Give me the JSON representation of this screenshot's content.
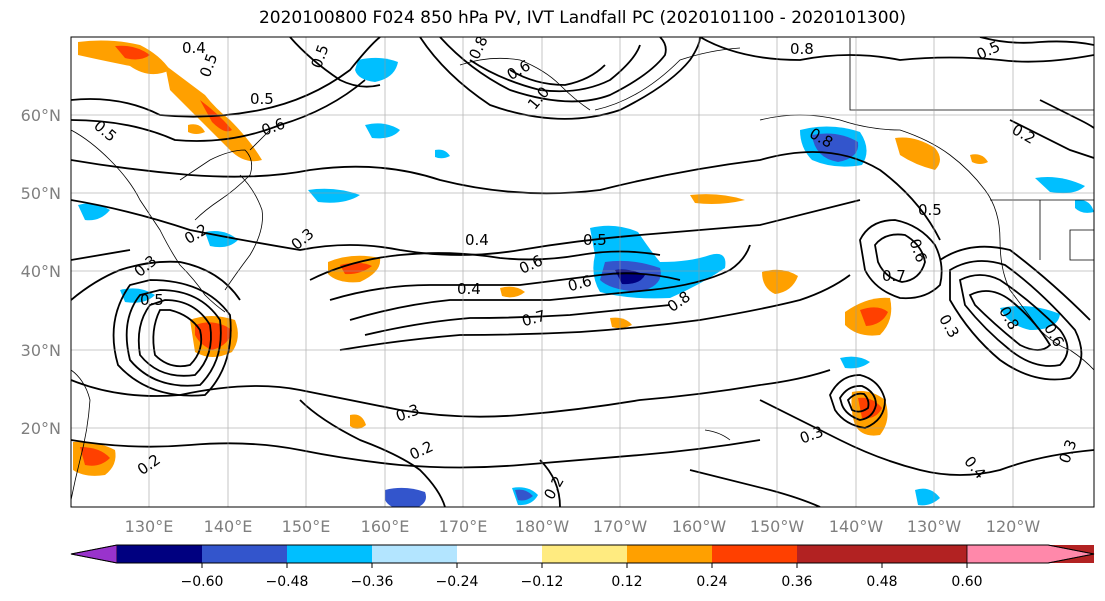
{
  "title": "2020100800 F024 850 hPa PV, IVT Landfall PC (2020101100 - 2020101300)",
  "lat_labels": [
    "60°N",
    "50°N",
    "40°N",
    "30°N",
    "20°N"
  ],
  "lon_labels": [
    "130°E",
    "140°E",
    "150°E",
    "160°E",
    "170°E",
    "180°W",
    "170°W",
    "160°W",
    "150°W",
    "140°W",
    "130°W",
    "120°W"
  ],
  "colorbar": {
    "ticks": [
      "−0.60",
      "−0.48",
      "−0.36",
      "−0.24",
      "−0.12",
      "0.12",
      "0.24",
      "0.36",
      "0.48",
      "0.60"
    ],
    "colors": [
      "#9933cc",
      "#000080",
      "#3355cc",
      "#00bfff",
      "#b3e5ff",
      "#ffffff",
      "#ffeb80",
      "#ffa000",
      "#ff4000",
      "#b22222",
      "#ff88aa"
    ]
  },
  "contour_labels": [
    "0.4",
    "0.5",
    "0.5",
    "0.8",
    "0.6",
    "1.0",
    "0.8",
    "0.5",
    "0.5",
    "0.6",
    "0.5",
    "0.2",
    "0.2",
    "0.3",
    "0.4",
    "0.5",
    "0.6",
    "0.7",
    "0.4",
    "0.6",
    "0.8",
    "0.7",
    "0.6",
    "0.5",
    "0.3",
    "0.3",
    "0.2",
    "0.2",
    "0.3",
    "0.4",
    "0.3",
    "0.8",
    "0.8",
    "0.5",
    "0.6",
    "0.3",
    "0.2"
  ]
}
